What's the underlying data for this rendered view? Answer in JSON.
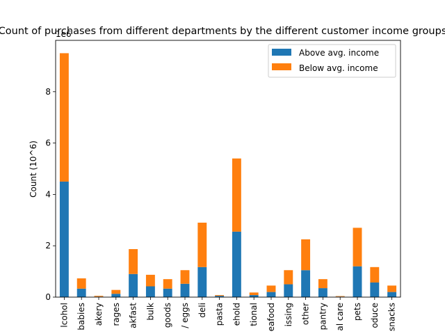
{
  "chart_data": {
    "type": "bar",
    "stacked": true,
    "title": "Count of purchases from different departments by the different customer income groups",
    "ylabel": "Count (10^6)",
    "offset_text": "1e6",
    "xlabel": "",
    "ylim": [
      0,
      10
    ],
    "yticks": [
      0,
      2,
      4,
      6,
      8
    ],
    "categories": [
      "alcohol",
      "babies",
      "bakery",
      "beverages",
      "breakfast",
      "bulk",
      "canned goods",
      "dairy eggs",
      "deli",
      "dry goods pasta",
      "household",
      "international",
      "meat seafood",
      "missing",
      "other",
      "pantry",
      "personal care",
      "pets",
      "produce",
      "snacks"
    ],
    "visible_tick_text": [
      "lcohol",
      "babies",
      "akery",
      "rages",
      "akfast",
      "bulk",
      "goods",
      "/ eggs",
      "deli",
      "pasta",
      "ehold",
      "tional",
      "eafood",
      "issing",
      "other",
      "pantry",
      "al care",
      "pets",
      "oduce",
      "snacks"
    ],
    "series": [
      {
        "name": "Above avg. income",
        "color": "#1f77b4",
        "values": [
          4.5,
          0.33,
          0.02,
          0.13,
          0.9,
          0.42,
          0.33,
          0.52,
          1.17,
          0.05,
          2.55,
          0.08,
          0.2,
          0.5,
          1.05,
          0.35,
          0.02,
          1.2,
          0.57,
          0.2
        ]
      },
      {
        "name": "Below avg. income",
        "color": "#ff7f0e",
        "values": [
          5.0,
          0.4,
          0.03,
          0.15,
          0.97,
          0.45,
          0.37,
          0.53,
          1.73,
          0.03,
          2.85,
          0.1,
          0.25,
          0.55,
          1.2,
          0.35,
          0.02,
          1.5,
          0.6,
          0.25
        ]
      }
    ],
    "legend_position": "top-right",
    "grid": false
  }
}
